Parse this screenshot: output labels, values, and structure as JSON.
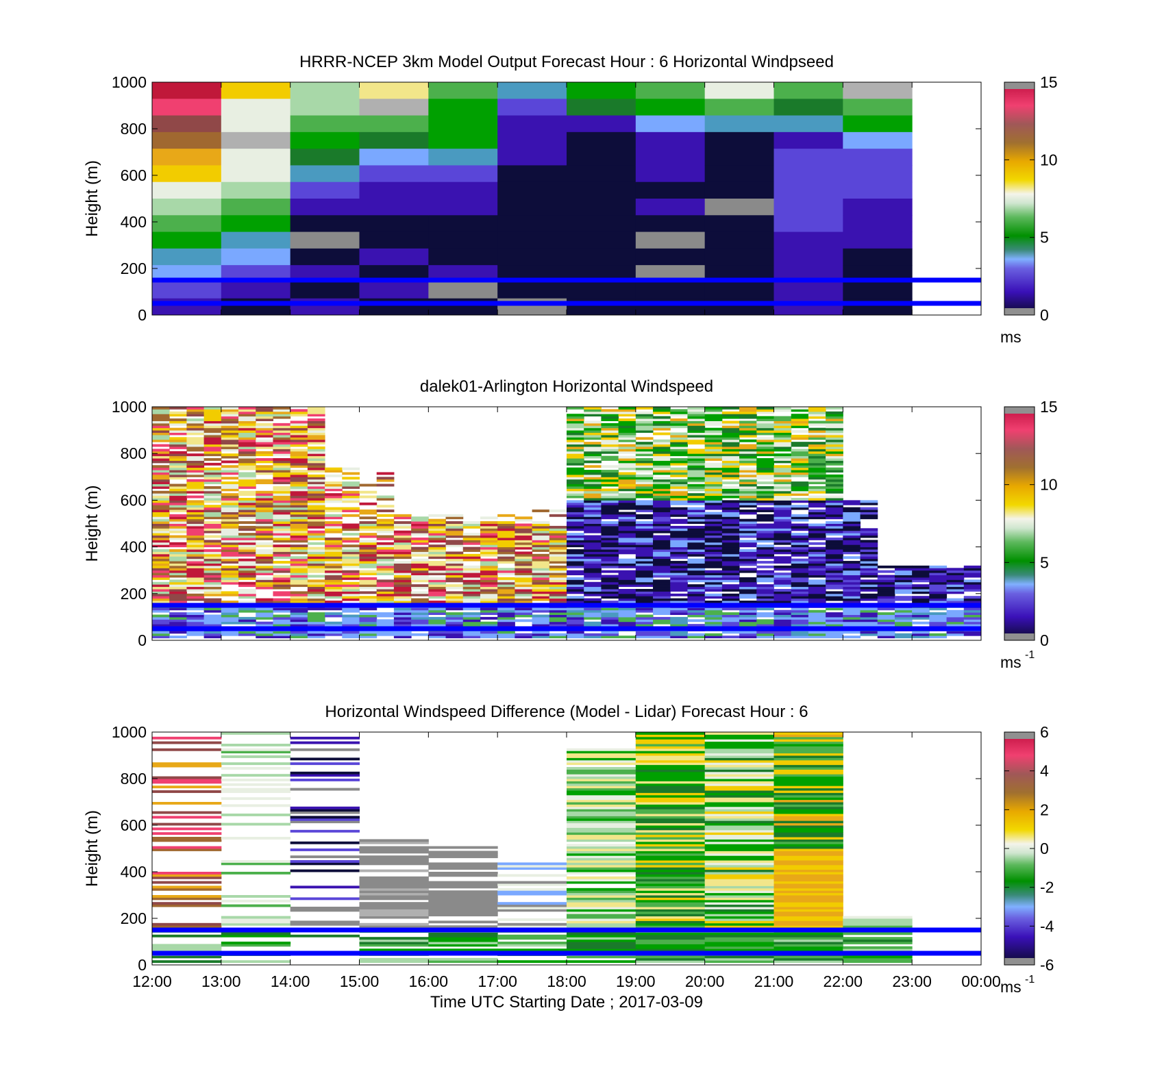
{
  "chart_data": [
    {
      "type": "heatmap",
      "title": "HRRR-NCEP 3km Model Output   Forecast Hour : 6 Horizontal Windpseed",
      "ylabel": "Height (m)",
      "xlabel": "",
      "ylim": [
        0,
        1000
      ],
      "yticks": [
        0,
        200,
        400,
        600,
        800,
        1000
      ],
      "xlim_hours": [
        12,
        24
      ],
      "colorbar": {
        "min": 0,
        "max": 15,
        "ticks": [
          0,
          5,
          10,
          15
        ],
        "unit": "ms",
        "unit_sup": ""
      },
      "reference_lines_m": [
        50,
        150
      ],
      "note_hours_covered": [
        12,
        23
      ]
    },
    {
      "type": "heatmap",
      "title": "dalek01-Arlington  Horizontal Windspeed",
      "ylabel": "Height (m)",
      "xlabel": "",
      "ylim": [
        0,
        1000
      ],
      "yticks": [
        0,
        200,
        400,
        600,
        800,
        1000
      ],
      "xlim_hours": [
        12,
        24
      ],
      "colorbar": {
        "min": 0,
        "max": 15,
        "ticks": [
          0,
          5,
          10,
          15
        ],
        "unit": "ms",
        "unit_sup": "-1"
      },
      "reference_lines_m": [
        50,
        150
      ]
    },
    {
      "type": "heatmap",
      "title": "Horizontal Windspeed Difference (Model - Lidar) Forecast Hour : 6",
      "ylabel": "Height (m)",
      "xlabel": "Time UTC  Starting Date ; 2017-03-09",
      "ylim": [
        0,
        1000
      ],
      "yticks": [
        0,
        200,
        400,
        600,
        800,
        1000
      ],
      "xticks": [
        "12:00",
        "13:00",
        "14:00",
        "15:00",
        "16:00",
        "17:00",
        "18:00",
        "19:00",
        "20:00",
        "21:00",
        "22:00",
        "23:00",
        "00:00"
      ],
      "xlim_hours": [
        12,
        24
      ],
      "colorbar": {
        "min": -6,
        "max": 6,
        "ticks": [
          -6,
          -4,
          -2,
          0,
          2,
          4,
          6
        ],
        "unit": "ms",
        "unit_sup": "-1"
      },
      "reference_lines_m": [
        50,
        150
      ]
    }
  ],
  "colormap_stops": [
    "#0d0d30",
    "#3a12b0",
    "#5a46d8",
    "#7aa8ff",
    "#4a9ac0",
    "#3a8a5a",
    "#00a000",
    "#4cb04c",
    "#a8d8a8",
    "#eef2e6",
    "#f2e68a",
    "#f2cc00",
    "#e2a818",
    "#a06830",
    "#a05050",
    "#f04070",
    "#c0183a",
    "#909090"
  ]
}
